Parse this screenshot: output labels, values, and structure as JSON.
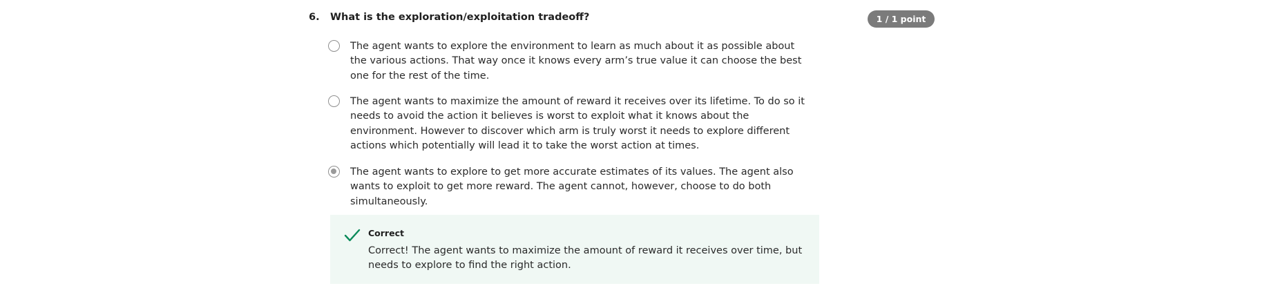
{
  "question": {
    "number": "6.",
    "text": "What is the exploration/exploitation tradeoff?",
    "score": "1 / 1 point"
  },
  "options": [
    {
      "text": "The agent wants to explore the environment to learn as much about it as possible about the various actions. That way once it knows every arm’s true value it can choose the best one for the rest of the time.",
      "selected": false
    },
    {
      "text": "The agent wants to maximize the amount of reward it receives over its lifetime. To do so it needs to avoid the action it believes is worst to exploit what it knows about the environment. However to discover which arm is truly worst it needs to explore different actions which potentially will lead it to take the worst action at times.",
      "selected": false
    },
    {
      "text": "The agent wants to explore to get more accurate estimates of its values. The agent also wants to exploit to get more reward. The agent cannot, however, choose to do both simultaneously.",
      "selected": true
    }
  ],
  "feedback": {
    "icon": "check-icon",
    "title": "Correct",
    "text": "Correct! The agent wants to maximize the amount of reward it receives over time, but needs to explore to find the right action.",
    "accent_color": "#0b8a5a",
    "background_color": "#f0f8f4"
  },
  "colors": {
    "badge_background": "#7b7b7b",
    "radio_border": "#8f8f8f"
  }
}
